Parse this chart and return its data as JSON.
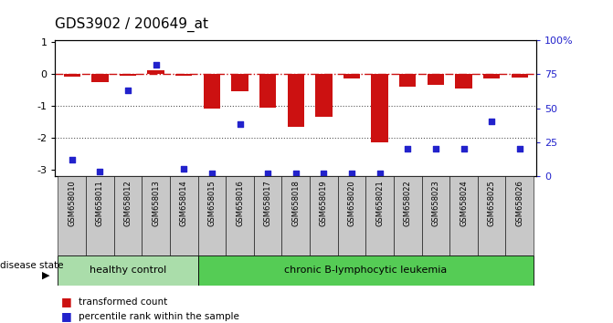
{
  "title": "GDS3902 / 200649_at",
  "samples": [
    "GSM658010",
    "GSM658011",
    "GSM658012",
    "GSM658013",
    "GSM658014",
    "GSM658015",
    "GSM658016",
    "GSM658017",
    "GSM658018",
    "GSM658019",
    "GSM658020",
    "GSM658021",
    "GSM658022",
    "GSM658023",
    "GSM658024",
    "GSM658025",
    "GSM658026"
  ],
  "bar_values": [
    -0.08,
    -0.25,
    -0.07,
    0.1,
    -0.07,
    -1.1,
    -0.55,
    -1.05,
    -1.65,
    -1.35,
    -0.15,
    -2.15,
    -0.4,
    -0.35,
    -0.45,
    -0.15,
    -0.12
  ],
  "dot_values": [
    12,
    3,
    63,
    82,
    5,
    2,
    38,
    2,
    2,
    2,
    2,
    2,
    20,
    20,
    20,
    40,
    20
  ],
  "healthy_count": 5,
  "disease_count": 12,
  "healthy_label": "healthy control",
  "disease_label": "chronic B-lymphocytic leukemia",
  "disease_state_label": "disease state",
  "legend_bar": "transformed count",
  "legend_dot": "percentile rank within the sample",
  "ylim_left": [
    -3.2,
    1.05
  ],
  "ylim_right": [
    0,
    100
  ],
  "yticks_left": [
    -3,
    -2,
    -1,
    0,
    1
  ],
  "yticks_right": [
    0,
    25,
    50,
    75,
    100
  ],
  "bar_color": "#cc1111",
  "dot_color": "#2222cc",
  "hline_color": "#cc1111",
  "grid_color": "#555555",
  "bg_label_healthy": "#aaddaa",
  "bg_label_disease": "#55cc55",
  "bg_xtick": "#c8c8c8",
  "title_fontsize": 11,
  "tick_fontsize": 8,
  "sample_fontsize": 6
}
